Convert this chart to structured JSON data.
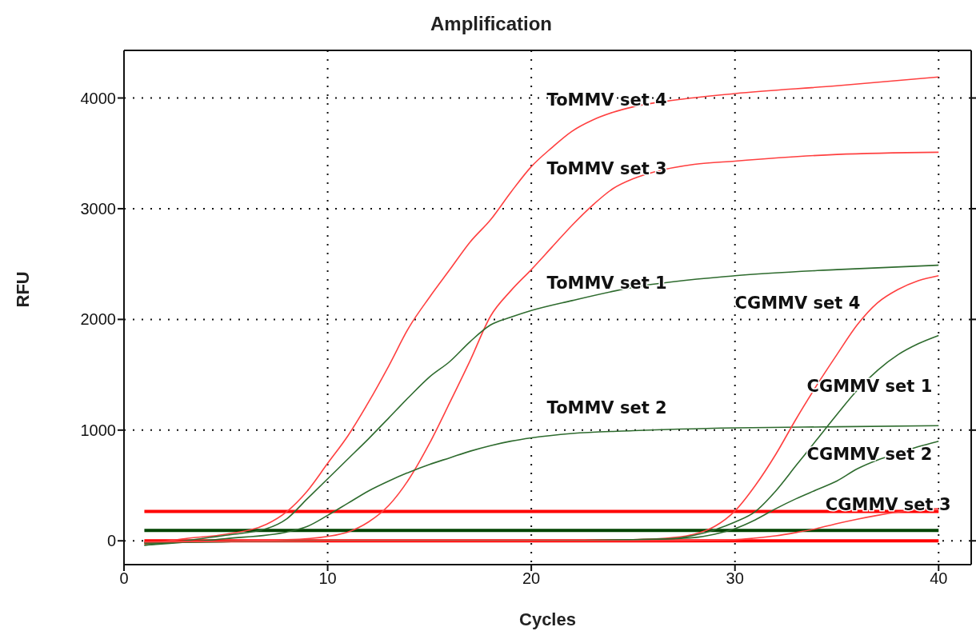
{
  "chart_data": {
    "type": "line",
    "title": "Amplification",
    "xlabel": "Cycles",
    "ylabel": "RFU",
    "xlim": [
      0,
      41.6
    ],
    "xticks": [
      0,
      10,
      20,
      30,
      40
    ],
    "ylim": [
      -215,
      4430
    ],
    "yticks": [
      0,
      1000,
      2000,
      3000,
      4000
    ],
    "grid": true,
    "legend": false,
    "marker": "none",
    "line_style": "solid",
    "series": [
      {
        "name": "ToMMV set 4",
        "color": "#ff4040",
        "x": [
          1,
          3,
          5,
          7,
          8,
          9,
          10,
          11,
          12,
          13,
          14,
          15,
          16,
          17,
          18,
          19,
          20,
          21,
          22,
          23,
          24,
          25,
          27,
          30,
          35,
          40
        ],
        "values": [
          -30,
          20,
          60,
          150,
          265,
          450,
          700,
          950,
          1250,
          1580,
          1930,
          2200,
          2450,
          2700,
          2900,
          3150,
          3380,
          3550,
          3700,
          3800,
          3870,
          3920,
          3980,
          4040,
          4110,
          4190
        ]
      },
      {
        "name": "ToMMV set 3",
        "color": "#ff4040",
        "x": [
          1,
          5,
          8,
          10,
          11,
          12,
          13,
          14,
          15,
          16,
          17,
          18,
          19,
          20,
          21,
          22,
          23,
          24,
          25,
          26,
          28,
          30,
          35,
          40
        ],
        "values": [
          -20,
          0,
          10,
          40,
          80,
          170,
          320,
          560,
          880,
          1250,
          1630,
          2030,
          2260,
          2450,
          2650,
          2850,
          3030,
          3180,
          3270,
          3330,
          3400,
          3430,
          3490,
          3510
        ]
      },
      {
        "name": "ToMMV set 1",
        "color": "#2e6b2e",
        "x": [
          1,
          5,
          7,
          8,
          9,
          10,
          11,
          12,
          13,
          14,
          15,
          16,
          17,
          18,
          19,
          20,
          22,
          25,
          30,
          35,
          40
        ],
        "values": [
          -40,
          50,
          110,
          200,
          380,
          560,
          740,
          920,
          1110,
          1300,
          1480,
          1620,
          1800,
          1950,
          2020,
          2080,
          2170,
          2290,
          2395,
          2450,
          2490
        ]
      },
      {
        "name": "ToMMV set 2",
        "color": "#2e6b2e",
        "x": [
          1,
          5,
          8,
          9,
          10,
          11,
          12,
          13,
          14,
          15,
          16,
          17,
          18,
          19,
          20,
          22,
          25,
          30,
          35,
          40
        ],
        "values": [
          -40,
          20,
          80,
          130,
          230,
          340,
          450,
          540,
          620,
          690,
          750,
          810,
          860,
          900,
          930,
          970,
          995,
          1020,
          1030,
          1040
        ]
      },
      {
        "name": "CGMMV set 4",
        "color": "#ff4040",
        "x": [
          1,
          10,
          20,
          25,
          27,
          28,
          29,
          30,
          31,
          32,
          33,
          34,
          35,
          36,
          37,
          38,
          39,
          40
        ],
        "values": [
          -10,
          0,
          0,
          10,
          30,
          60,
          130,
          270,
          500,
          780,
          1100,
          1400,
          1680,
          1950,
          2150,
          2270,
          2350,
          2395
        ]
      },
      {
        "name": "CGMMV set 1",
        "color": "#2e6b2e",
        "x": [
          1,
          10,
          20,
          25,
          27,
          28,
          29,
          30,
          31,
          32,
          33,
          34,
          35,
          36,
          37,
          38,
          39,
          40
        ],
        "values": [
          -20,
          0,
          0,
          10,
          20,
          50,
          100,
          170,
          265,
          450,
          680,
          910,
          1140,
          1360,
          1540,
          1680,
          1780,
          1855
        ]
      },
      {
        "name": "CGMMV set 2",
        "color": "#2e6b2e",
        "x": [
          1,
          10,
          20,
          25,
          28,
          29,
          30,
          31,
          32,
          33,
          34,
          35,
          36,
          37,
          38,
          39,
          40
        ],
        "values": [
          -20,
          0,
          0,
          10,
          30,
          60,
          110,
          190,
          290,
          380,
          460,
          540,
          650,
          730,
          790,
          850,
          900
        ]
      },
      {
        "name": "CGMMV set 3",
        "color": "#ff4040",
        "x": [
          1,
          10,
          20,
          25,
          30,
          31,
          32,
          33,
          34,
          35,
          36,
          37,
          38,
          39,
          40
        ],
        "values": [
          -10,
          0,
          0,
          0,
          10,
          25,
          45,
          75,
          110,
          155,
          195,
          230,
          260,
          280,
          290
        ]
      }
    ],
    "ref_lines": [
      {
        "axis": "y",
        "value": 265,
        "color": "#ff0000"
      },
      {
        "axis": "y",
        "value": 93,
        "color": "#004400"
      },
      {
        "axis": "y",
        "value": 0,
        "color": "#ff0000"
      }
    ]
  }
}
